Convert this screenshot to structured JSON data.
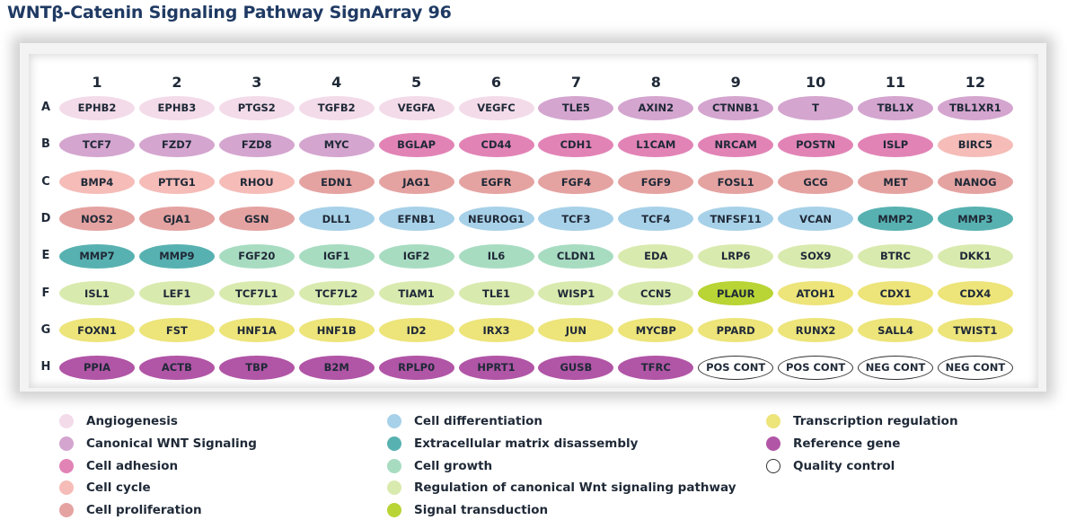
{
  "title": "WNTβ-Catenin Signaling Pathway SignArray 96",
  "columns": [
    "1",
    "2",
    "3",
    "4",
    "5",
    "6",
    "7",
    "8",
    "9",
    "10",
    "11",
    "12"
  ],
  "rows": [
    "A",
    "B",
    "C",
    "D",
    "E",
    "F",
    "G",
    "H"
  ],
  "categories": {
    "ang": {
      "label": "Angiogenesis",
      "color": "#f3dbe9"
    },
    "can": {
      "label": "Canonical WNT Signaling",
      "color": "#d4a5cf"
    },
    "adh": {
      "label": "Cell adhesion",
      "color": "#e283b6"
    },
    "cyc": {
      "label": "Cell cycle",
      "color": "#f5bcb8"
    },
    "pro": {
      "label": "Cell proliferation",
      "color": "#e4a3a1"
    },
    "dif": {
      "label": "Cell differentiation",
      "color": "#a7d1e8"
    },
    "ecm": {
      "label": "Extracellular matrix disassembly",
      "color": "#58b1b1"
    },
    "gro": {
      "label": "Cell growth",
      "color": "#a8dcc1"
    },
    "reg": {
      "label": "Regulation of canonical Wnt signaling pathway",
      "color": "#d9eaae"
    },
    "sig": {
      "label": "Signal transduction",
      "color": "#b8d435"
    },
    "tra": {
      "label": "Transcription regulation",
      "color": "#ede47a"
    },
    "ref": {
      "label": "Reference gene",
      "color": "#b155a6"
    },
    "qc": {
      "label": "Quality control",
      "color": "#ffffff"
    }
  },
  "legend_columns": [
    [
      "ang",
      "can",
      "adh",
      "cyc",
      "pro"
    ],
    [
      "dif",
      "ecm",
      "gro",
      "reg",
      "sig"
    ],
    [
      "tra",
      "ref",
      "qc"
    ]
  ],
  "plate": [
    [
      [
        "EPHB2",
        "ang"
      ],
      [
        "EPHB3",
        "ang"
      ],
      [
        "PTGS2",
        "ang"
      ],
      [
        "TGFB2",
        "ang"
      ],
      [
        "VEGFA",
        "ang"
      ],
      [
        "VEGFC",
        "ang"
      ],
      [
        "TLE5",
        "can"
      ],
      [
        "AXIN2",
        "can"
      ],
      [
        "CTNNB1",
        "can"
      ],
      [
        "T",
        "can"
      ],
      [
        "TBL1X",
        "can"
      ],
      [
        "TBL1XR1",
        "can"
      ]
    ],
    [
      [
        "TCF7",
        "can"
      ],
      [
        "FZD7",
        "can"
      ],
      [
        "FZD8",
        "can"
      ],
      [
        "MYC",
        "can"
      ],
      [
        "BGLAP",
        "adh"
      ],
      [
        "CD44",
        "adh"
      ],
      [
        "CDH1",
        "adh"
      ],
      [
        "L1CAM",
        "adh"
      ],
      [
        "NRCAM",
        "adh"
      ],
      [
        "POSTN",
        "adh"
      ],
      [
        "ISLP",
        "adh"
      ],
      [
        "BIRC5",
        "cyc"
      ]
    ],
    [
      [
        "BMP4",
        "cyc"
      ],
      [
        "PTTG1",
        "cyc"
      ],
      [
        "RHOU",
        "cyc"
      ],
      [
        "EDN1",
        "pro"
      ],
      [
        "JAG1",
        "pro"
      ],
      [
        "EGFR",
        "pro"
      ],
      [
        "FGF4",
        "pro"
      ],
      [
        "FGF9",
        "pro"
      ],
      [
        "FOSL1",
        "pro"
      ],
      [
        "GCG",
        "pro"
      ],
      [
        "MET",
        "pro"
      ],
      [
        "NANOG",
        "pro"
      ]
    ],
    [
      [
        "NOS2",
        "pro"
      ],
      [
        "GJA1",
        "pro"
      ],
      [
        "GSN",
        "pro"
      ],
      [
        "DLL1",
        "dif"
      ],
      [
        "EFNB1",
        "dif"
      ],
      [
        "NEUROG1",
        "dif"
      ],
      [
        "TCF3",
        "dif"
      ],
      [
        "TCF4",
        "dif"
      ],
      [
        "TNFSF11",
        "dif"
      ],
      [
        "VCAN",
        "dif"
      ],
      [
        "MMP2",
        "ecm"
      ],
      [
        "MMP3",
        "ecm"
      ]
    ],
    [
      [
        "MMP7",
        "ecm"
      ],
      [
        "MMP9",
        "ecm"
      ],
      [
        "FGF20",
        "gro"
      ],
      [
        "IGF1",
        "gro"
      ],
      [
        "IGF2",
        "gro"
      ],
      [
        "IL6",
        "gro"
      ],
      [
        "CLDN1",
        "gro"
      ],
      [
        "EDA",
        "reg"
      ],
      [
        "LRP6",
        "reg"
      ],
      [
        "SOX9",
        "reg"
      ],
      [
        "BTRC",
        "reg"
      ],
      [
        "DKK1",
        "reg"
      ]
    ],
    [
      [
        "ISL1",
        "reg"
      ],
      [
        "LEF1",
        "reg"
      ],
      [
        "TCF7L1",
        "reg"
      ],
      [
        "TCF7L2",
        "reg"
      ],
      [
        "TIAM1",
        "reg"
      ],
      [
        "TLE1",
        "reg"
      ],
      [
        "WISP1",
        "reg"
      ],
      [
        "CCN5",
        "reg"
      ],
      [
        "PLAUR",
        "sig"
      ],
      [
        "ATOH1",
        "tra"
      ],
      [
        "CDX1",
        "tra"
      ],
      [
        "CDX4",
        "tra"
      ]
    ],
    [
      [
        "FOXN1",
        "tra"
      ],
      [
        "FST",
        "tra"
      ],
      [
        "HNF1A",
        "tra"
      ],
      [
        "HNF1B",
        "tra"
      ],
      [
        "ID2",
        "tra"
      ],
      [
        "IRX3",
        "tra"
      ],
      [
        "JUN",
        "tra"
      ],
      [
        "MYCBP",
        "tra"
      ],
      [
        "PPARD",
        "tra"
      ],
      [
        "RUNX2",
        "tra"
      ],
      [
        "SALL4",
        "tra"
      ],
      [
        "TWIST1",
        "tra"
      ]
    ],
    [
      [
        "PPIA",
        "ref"
      ],
      [
        "ACTB",
        "ref"
      ],
      [
        "TBP",
        "ref"
      ],
      [
        "B2M",
        "ref"
      ],
      [
        "RPLP0",
        "ref"
      ],
      [
        "HPRT1",
        "ref"
      ],
      [
        "GUSB",
        "ref"
      ],
      [
        "TFRC",
        "ref"
      ],
      [
        "POS CONT",
        "qc"
      ],
      [
        "POS CONT",
        "qc"
      ],
      [
        "NEG CONT",
        "qc"
      ],
      [
        "NEG CONT",
        "qc"
      ]
    ]
  ]
}
